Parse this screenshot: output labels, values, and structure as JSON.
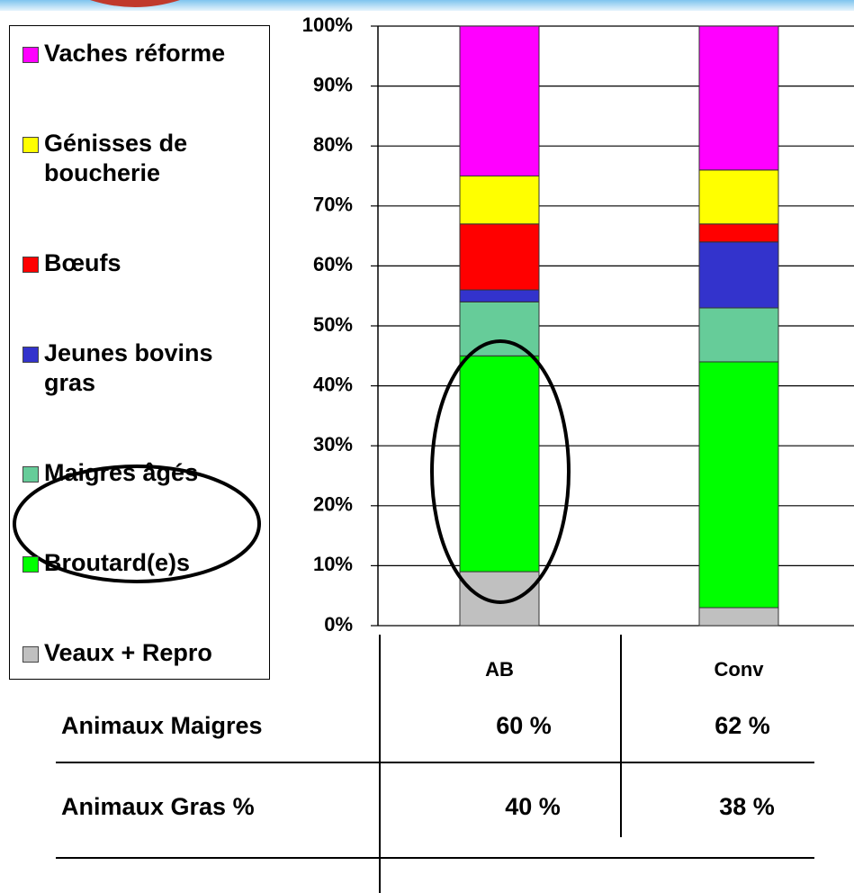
{
  "chart_data": {
    "type": "stacked_bar",
    "categories": [
      "AB",
      "Conv"
    ],
    "series": [
      {
        "name": "Veaux + Repro",
        "color": "#c0c0c0",
        "values": [
          9,
          3
        ]
      },
      {
        "name": "Broutard(e)s",
        "color": "#00ff00",
        "values": [
          36,
          41
        ]
      },
      {
        "name": "Maigres âgés",
        "color": "#66cc99",
        "values": [
          9,
          9
        ]
      },
      {
        "name": "Jeunes bovins gras",
        "color": "#3333cc",
        "values": [
          2,
          11
        ]
      },
      {
        "name": "Bœufs",
        "color": "#ff0000",
        "values": [
          11,
          3
        ]
      },
      {
        "name": "Génisses de boucherie",
        "color": "#ffff00",
        "values": [
          8,
          9
        ]
      },
      {
        "name": "Vaches réforme",
        "color": "#ff00ff",
        "values": [
          25,
          24
        ]
      }
    ],
    "ylim": [
      0,
      100
    ],
    "yticks": [
      {
        "value": 0,
        "label": "0%"
      },
      {
        "value": 10,
        "label": "10%"
      },
      {
        "value": 20,
        "label": "20%"
      },
      {
        "value": 30,
        "label": "30%"
      },
      {
        "value": 40,
        "label": "40%"
      },
      {
        "value": 50,
        "label": "50%"
      },
      {
        "value": 60,
        "label": "60%"
      },
      {
        "value": 70,
        "label": "70%"
      },
      {
        "value": 80,
        "label": "80%"
      },
      {
        "value": 90,
        "label": "90%"
      },
      {
        "value": 100,
        "label": "100%"
      }
    ],
    "grid": true
  },
  "table": {
    "rows": [
      [
        "Animaux Maigres",
        "60 %",
        "62 %"
      ],
      [
        "Animaux Gras %",
        "40 %",
        "38 %"
      ]
    ]
  }
}
